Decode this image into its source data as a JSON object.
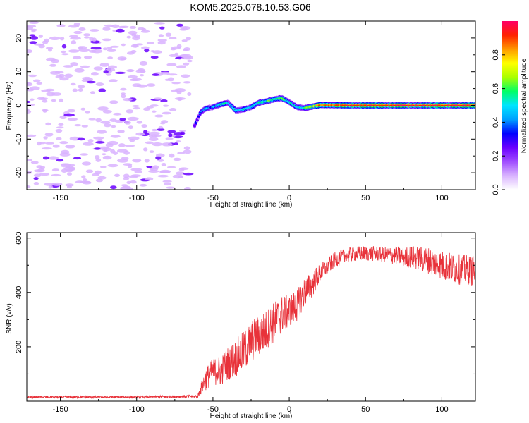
{
  "title": "KOM5.2025.078.10.53.G06",
  "colors": {
    "snr_line": "#e8323a",
    "frame": "#000000",
    "colormap": [
      "#ffffff",
      "#d9b3ff",
      "#a04cff",
      "#6a00ff",
      "#0000ff",
      "#00a0ff",
      "#00e5ff",
      "#00ff66",
      "#aaff00",
      "#ffff00",
      "#ff9900",
      "#ff2200",
      "#ff0066"
    ]
  },
  "chart_data": [
    {
      "type": "heatmap",
      "name": "spectrogram",
      "xlabel": "Height of straight line (km)",
      "ylabel": "Frequency (Hz)",
      "xlim": [
        -172,
        122
      ],
      "ylim": [
        -25,
        25
      ],
      "xticks": [
        -150,
        -100,
        -50,
        0,
        50,
        100
      ],
      "yticks": [
        -20,
        -10,
        0,
        10,
        20
      ],
      "colorbar": {
        "label": "Normalized spectral amplitude",
        "ticks": [
          "0.0",
          "0.2",
          "0.4",
          "0.6",
          "0.8"
        ],
        "tick_values": [
          0,
          0.2,
          0.4,
          0.6,
          0.8
        ],
        "range": [
          0,
          1
        ]
      },
      "ridge": {
        "x": [
          -62,
          -58,
          -55,
          -50,
          -45,
          -40,
          -35,
          -30,
          -25,
          -20,
          -15,
          -10,
          -5,
          0,
          5,
          10,
          20,
          40,
          60,
          80,
          100,
          122
        ],
        "y": [
          -6,
          -2,
          -1,
          -0.5,
          0.3,
          0.8,
          -1.5,
          -1.2,
          -0.5,
          0.8,
          1.2,
          1.8,
          2.2,
          1.0,
          -0.5,
          -0.8,
          0.1,
          0,
          0,
          0,
          0,
          0
        ],
        "amplitude": [
          0.3,
          0.35,
          0.45,
          0.4,
          0.5,
          0.55,
          0.5,
          0.55,
          0.5,
          0.55,
          0.6,
          0.6,
          0.65,
          0.55,
          0.5,
          0.55,
          0.85,
          0.92,
          0.95,
          0.95,
          0.93,
          0.94
        ]
      },
      "noise_region_x": [
        -172,
        -65
      ]
    },
    {
      "type": "line",
      "name": "snr",
      "xlabel": "Height of straight line (km)",
      "ylabel": "SNR (v/v)",
      "xlim": [
        -172,
        122
      ],
      "ylim": [
        0,
        620
      ],
      "xticks": [
        -150,
        -100,
        -50,
        0,
        50,
        100
      ],
      "yticks": [
        200,
        400,
        600
      ],
      "series": [
        {
          "x": [
            -172,
            -150,
            -100,
            -60,
            -55,
            -50,
            -45,
            -40,
            -35,
            -30,
            -25,
            -20,
            -15,
            -10,
            -5,
            0,
            5,
            10,
            15,
            20,
            30,
            40,
            50,
            60,
            70,
            80,
            90,
            100,
            110,
            122
          ],
          "values": [
            15,
            15,
            15,
            18,
            80,
            110,
            110,
            140,
            160,
            180,
            220,
            240,
            260,
            290,
            320,
            330,
            350,
            400,
            430,
            470,
            520,
            540,
            545,
            540,
            535,
            530,
            520,
            500,
            485,
            480
          ],
          "noise": [
            6,
            6,
            6,
            8,
            60,
            70,
            80,
            90,
            100,
            110,
            110,
            110,
            110,
            110,
            100,
            90,
            90,
            80,
            70,
            50,
            40,
            40,
            40,
            40,
            50,
            60,
            70,
            80,
            80,
            80
          ]
        }
      ]
    }
  ]
}
